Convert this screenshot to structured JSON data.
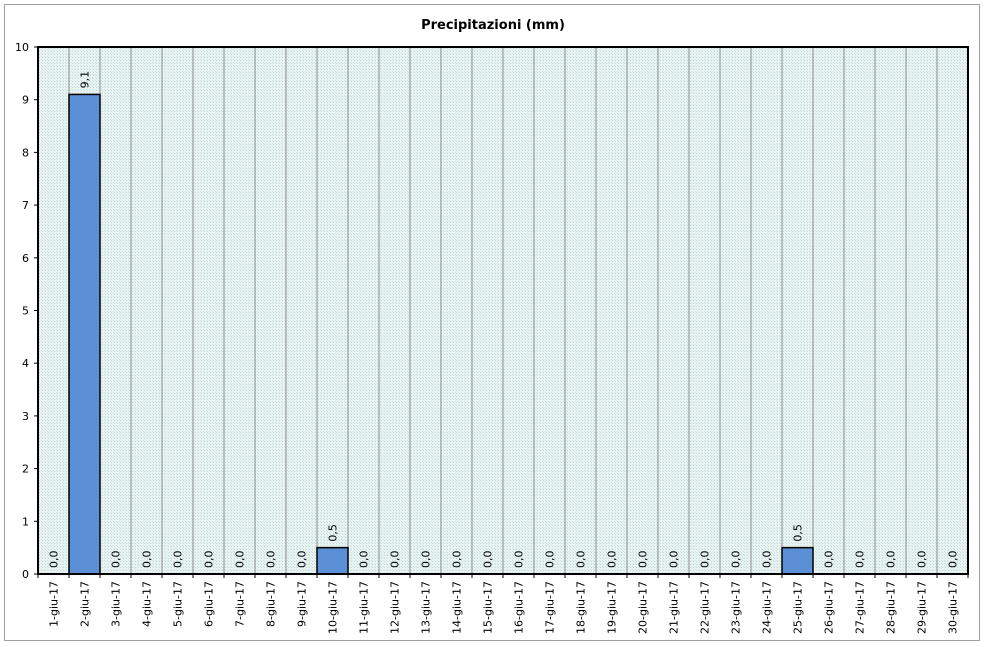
{
  "chart_data": {
    "type": "bar",
    "title": "Precipitazioni (mm)",
    "xlabel": "",
    "ylabel": "",
    "ylim": [
      0,
      10
    ],
    "yticks": [
      0,
      1,
      2,
      3,
      4,
      5,
      6,
      7,
      8,
      9,
      10
    ],
    "grid": true,
    "legend": "none",
    "categories": [
      "1-giu-17",
      "2-giu-17",
      "3-giu-17",
      "4-giu-17",
      "5-giu-17",
      "6-giu-17",
      "7-giu-17",
      "8-giu-17",
      "9-giu-17",
      "10-giu-17",
      "11-giu-17",
      "12-giu-17",
      "13-giu-17",
      "14-giu-17",
      "15-giu-17",
      "16-giu-17",
      "17-giu-17",
      "18-giu-17",
      "19-giu-17",
      "20-giu-17",
      "21-giu-17",
      "22-giu-17",
      "23-giu-17",
      "24-giu-17",
      "25-giu-17",
      "26-giu-17",
      "27-giu-17",
      "28-giu-17",
      "29-giu-17",
      "30-giu-17"
    ],
    "values": [
      0,
      9.1,
      0,
      0,
      0,
      0,
      0,
      0,
      0,
      0.5,
      0,
      0,
      0,
      0,
      0,
      0,
      0,
      0,
      0,
      0,
      0,
      0,
      0,
      0,
      0.5,
      0,
      0,
      0,
      0,
      0
    ],
    "data_labels": [
      "0,0",
      "9,1",
      "0,0",
      "0,0",
      "0,0",
      "0,0",
      "0,0",
      "0,0",
      "0,0",
      "0,5",
      "0,0",
      "0,0",
      "0,0",
      "0,0",
      "0,0",
      "0,0",
      "0,0",
      "0,0",
      "0,0",
      "0,0",
      "0,0",
      "0,0",
      "0,0",
      "0,0",
      "0,5",
      "0,0",
      "0,0",
      "0,0",
      "0,0",
      "0,0"
    ],
    "colors": {
      "bar": "#5b8fd6",
      "bar_border": "#000000",
      "plot_background": "#e4f1ef",
      "gridline": "#8c8c8c"
    }
  }
}
